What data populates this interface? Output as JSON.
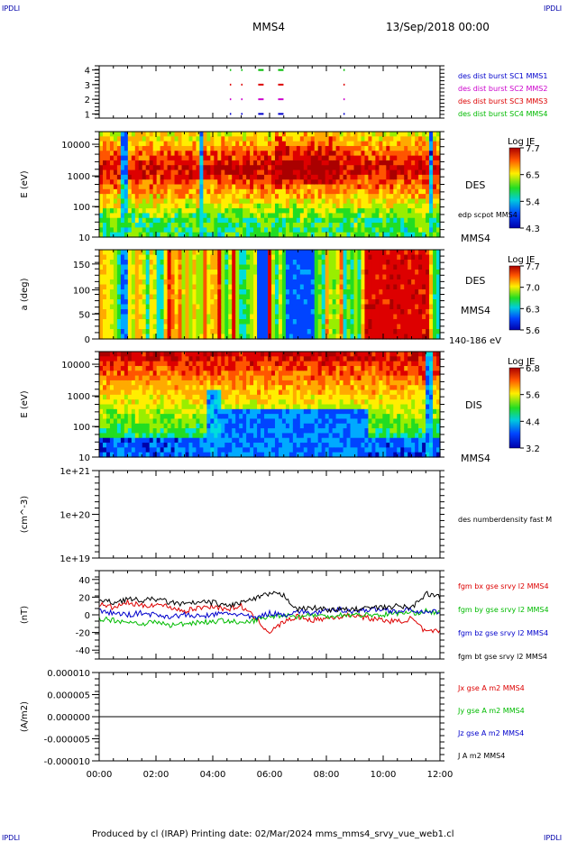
{
  "header": {
    "corner_tl": "IPDLI",
    "corner_tr": "IPDLI",
    "corner_bl": "IPDLI",
    "corner_br": "IPDLI",
    "spacecraft": "MMS4",
    "datetime": "13/Sep/2018 00:00",
    "footer": "Produced by cl (IRAP)   Printing date: 02/Mar/2024   mms_mms4_srvy_vue_web1.cl"
  },
  "colors": {
    "mms1": "#0000cc",
    "mms2": "#cc00cc",
    "mms3": "#dd0000",
    "mms4": "#00bb00",
    "bx": "#dd0000",
    "by": "#00bb00",
    "bz": "#0000cc",
    "bt": "#000000"
  },
  "chart_data": [
    {
      "id": "burst",
      "type": "scatter",
      "ylabel": "",
      "yticks": [
        "4",
        "3",
        "2",
        "1"
      ],
      "legend": [
        {
          "label": "des dist burst SC1 MMS1",
          "color": "#0000cc"
        },
        {
          "label": "des dist burst SC2 MMS2",
          "color": "#cc00cc"
        },
        {
          "label": "des dist burst SC3 MMS3",
          "color": "#dd0000"
        },
        {
          "label": "des dist burst SC4 MMS4",
          "color": "#00bb00"
        }
      ],
      "intervals_hours": [
        4.6,
        5.0,
        5.6,
        6.3,
        8.6
      ]
    },
    {
      "id": "des_energy",
      "type": "heatmap",
      "ylabel": "E (eV)",
      "yticks": [
        "10000",
        "1000",
        "100",
        "10"
      ],
      "side_labels": [
        "DES",
        "edp scpot MMS4",
        "MMS4"
      ],
      "colorbar": {
        "title": "Log JE",
        "ticks": [
          "7.7",
          "6.5",
          "5.4",
          "4.3"
        ]
      },
      "scale": "log"
    },
    {
      "id": "des_pitch",
      "type": "heatmap",
      "ylabel": "a (deg)",
      "yticks": [
        "150",
        "100",
        "50",
        "0"
      ],
      "side_labels": [
        "DES",
        "MMS4",
        "140-186 eV"
      ],
      "colorbar": {
        "title": "Log JE",
        "ticks": [
          "7.7",
          "7.0",
          "6.3",
          "5.6"
        ]
      }
    },
    {
      "id": "dis_energy",
      "type": "heatmap",
      "ylabel": "E (eV)",
      "yticks": [
        "10000",
        "1000",
        "100",
        "10"
      ],
      "side_labels": [
        "DIS",
        "MMS4"
      ],
      "colorbar": {
        "title": "Log JE",
        "ticks": [
          "6.8",
          "5.6",
          "4.4",
          "3.2"
        ]
      },
      "scale": "log"
    },
    {
      "id": "density",
      "type": "line",
      "ylabel": "(cm^-3)",
      "yticks": [
        "1e+21",
        "1e+20",
        "1e+19"
      ],
      "legend": [
        {
          "label": "des numberdensity fast M",
          "color": "#000000"
        }
      ]
    },
    {
      "id": "bfield",
      "type": "line",
      "ylabel": "(nT)",
      "yticks": [
        "40",
        "20",
        "0",
        "-20",
        "-40"
      ],
      "ylim": [
        -50,
        50
      ],
      "legend": [
        {
          "label": "fgm bx gse srvy l2 MMS4",
          "color": "#dd0000"
        },
        {
          "label": "fgm by gse srvy l2 MMS4",
          "color": "#00bb00"
        },
        {
          "label": "fgm bz gse srvy l2 MMS4",
          "color": "#0000cc"
        },
        {
          "label": "fgm bt gse srvy l2 MMS4",
          "color": "#000000"
        }
      ],
      "x": [
        0,
        0.5,
        1,
        1.5,
        2,
        2.5,
        3,
        3.5,
        4,
        4.5,
        5,
        5.5,
        6,
        6.5,
        7,
        7.5,
        8,
        8.5,
        9,
        9.5,
        10,
        10.5,
        11,
        11.5,
        12
      ],
      "series": [
        {
          "name": "fgm bx gse srvy l2 MMS4",
          "values": [
            12,
            8,
            14,
            10,
            12,
            9,
            4,
            8,
            10,
            6,
            10,
            -4,
            -20,
            -8,
            -2,
            -6,
            -4,
            -2,
            0,
            -4,
            -6,
            -8,
            -4,
            -20,
            -18
          ]
        },
        {
          "name": "fgm by gse srvy l2 MMS4",
          "values": [
            -4,
            -6,
            -8,
            -10,
            -8,
            -12,
            -10,
            -8,
            -8,
            -6,
            -10,
            -6,
            -2,
            0,
            -2,
            0,
            -2,
            0,
            0,
            0,
            0,
            2,
            2,
            4,
            2
          ]
        },
        {
          "name": "fgm bz gse srvy l2 MMS4",
          "values": [
            4,
            2,
            0,
            2,
            0,
            -2,
            0,
            -2,
            0,
            2,
            0,
            -4,
            2,
            0,
            4,
            2,
            4,
            6,
            4,
            6,
            6,
            4,
            6,
            2,
            4
          ]
        },
        {
          "name": "fgm bt gse srvy l2 MMS4",
          "values": [
            16,
            14,
            18,
            16,
            18,
            14,
            12,
            14,
            14,
            10,
            14,
            18,
            24,
            22,
            6,
            8,
            6,
            6,
            6,
            8,
            8,
            10,
            8,
            24,
            20
          ]
        }
      ]
    },
    {
      "id": "current",
      "type": "line",
      "ylabel": "(A/m2)",
      "yticks": [
        "0.000010",
        "0.000005",
        "0.000000",
        "-0.000005",
        "-0.000010"
      ],
      "ylim": [
        -1e-05,
        1e-05
      ],
      "legend": [
        {
          "label": "Jx gse A m2 MMS4",
          "color": "#dd0000"
        },
        {
          "label": "Jy gse A m2 MMS4",
          "color": "#00bb00"
        },
        {
          "label": "Jz gse A m2 MMS4",
          "color": "#0000cc"
        },
        {
          "label": "J A m2 MMS4",
          "color": "#000000"
        }
      ],
      "x": [
        0,
        12
      ],
      "series": [
        {
          "name": "J A m2 MMS4",
          "values": [
            0,
            0
          ]
        }
      ]
    }
  ],
  "xaxis": {
    "ticks": [
      "00:00",
      "02:00",
      "04:00",
      "06:00",
      "08:00",
      "10:00",
      "12:00"
    ],
    "range_hours": [
      0,
      12
    ]
  }
}
